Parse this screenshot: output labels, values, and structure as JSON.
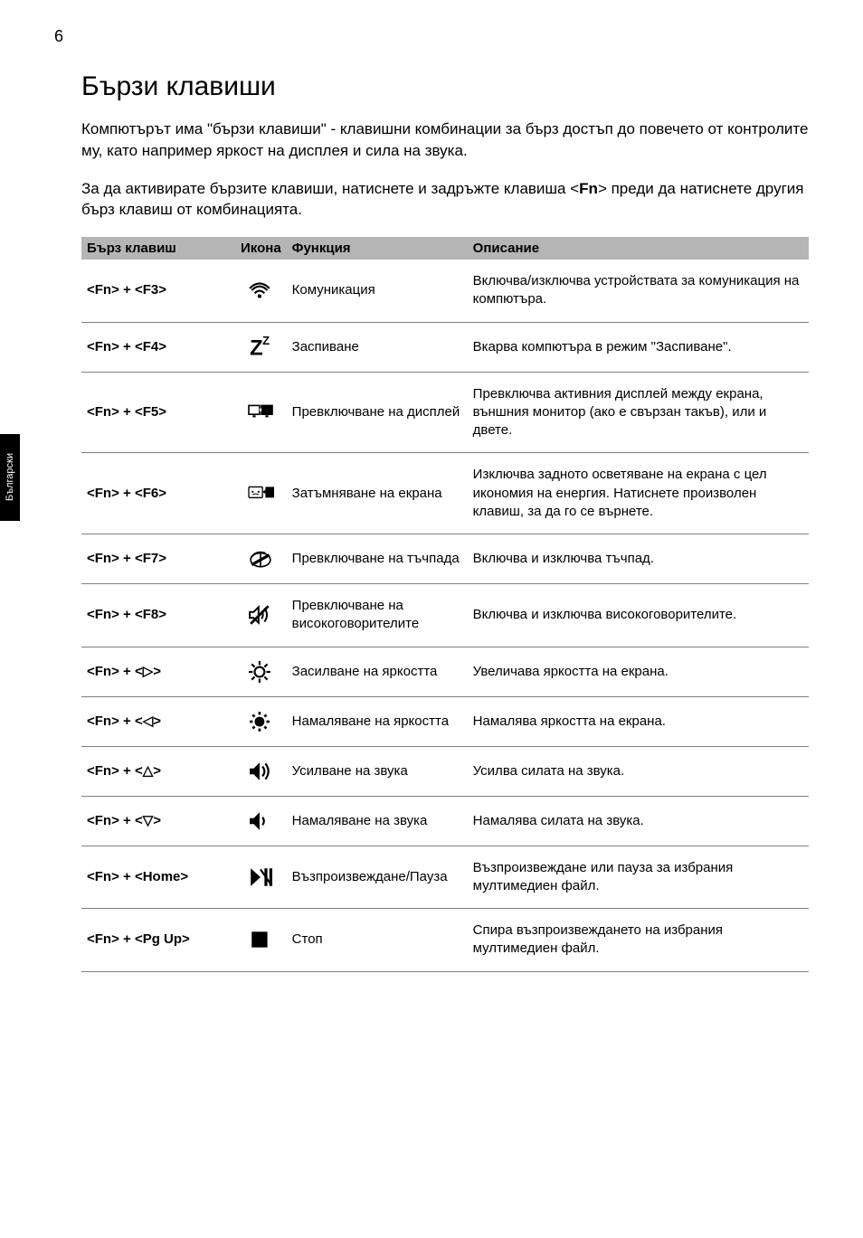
{
  "page_number": "6",
  "side_tab": "Български",
  "heading": "Бързи клавиши",
  "paragraph1": "Компютърът има \"бързи клавиши\" - клавишни комбинации за бърз достъп до повечето от контролите му, като например яркост на дисплея и сила на звука.",
  "paragraph2_prefix": "За да активирате бързите клавиши, натиснете и задръжте клавиша <",
  "paragraph2_bold": "Fn",
  "paragraph2_suffix": "> преди да натиснете другия бърз клавиш от комбинацията.",
  "table": {
    "headers": {
      "hotkey": "Бърз клавиш",
      "icon": "Икона",
      "function": "Функция",
      "description": "Описание"
    },
    "rows": [
      {
        "hotkey": "<Fn> + <F3>",
        "icon": "wifi",
        "function": "Комуникация",
        "description": "Включва/изключва устройствата за комуникация на компютъра."
      },
      {
        "hotkey": "<Fn> + <F4>",
        "icon": "sleep",
        "function": "Заспиване",
        "description": "Вкарва компютъра в режим \"Заспиване\"."
      },
      {
        "hotkey": "<Fn> + <F5>",
        "icon": "display",
        "function": "Превключване на дисплей",
        "description": "Превключва активния дисплей между екрана, външния монитор (ако е свързан такъв), или и двете."
      },
      {
        "hotkey": "<Fn> + <F6>",
        "icon": "blank",
        "function": "Затъмняване на екрана",
        "description": "Изключва задното осветяване на екрана с цел икономия на енергия. Натиснете произволен клавиш, за да го се върнете."
      },
      {
        "hotkey": "<Fn> + <F7>",
        "icon": "touchpad",
        "function": "Превключване на тъчпада",
        "description": "Включва и изключва тъчпад."
      },
      {
        "hotkey": "<Fn> + <F8>",
        "icon": "speaker",
        "function": "Превключване на високоговорителите",
        "description": "Включва и изключва високоговорителите."
      },
      {
        "hotkey": "<Fn> + <▷>",
        "icon": "bright-up",
        "function": "Засилване на яркостта",
        "description": "Увеличава яркостта на екрана."
      },
      {
        "hotkey": "<Fn> + <◁>",
        "icon": "bright-down",
        "function": "Намаляване на яркостта",
        "description": "Намалява яркостта на екрана."
      },
      {
        "hotkey": "<Fn> + <△>",
        "icon": "vol-up",
        "function": "Усилване на звука",
        "description": "Усилва силата на звука."
      },
      {
        "hotkey": "<Fn> + <▽>",
        "icon": "vol-down",
        "function": "Намаляване на звука",
        "description": "Намалява силата на звука."
      },
      {
        "hotkey": "<Fn> + <Home>",
        "icon": "play",
        "function": "Възпроизвеждане/Пауза",
        "description": "Възпроизвеждане или пауза за избрания мултимедиен файл."
      },
      {
        "hotkey": "<Fn> + <Pg Up>",
        "icon": "stop",
        "function": "Стоп",
        "description": "Спира възпроизвеждането на избрания мултимедиен файл."
      }
    ]
  },
  "style": {
    "header_bg": "#b5b5b5",
    "border_color": "#808080",
    "text_color": "#000000",
    "body_font_size": 17,
    "cell_font_size": 15,
    "heading_font_size": 30
  }
}
